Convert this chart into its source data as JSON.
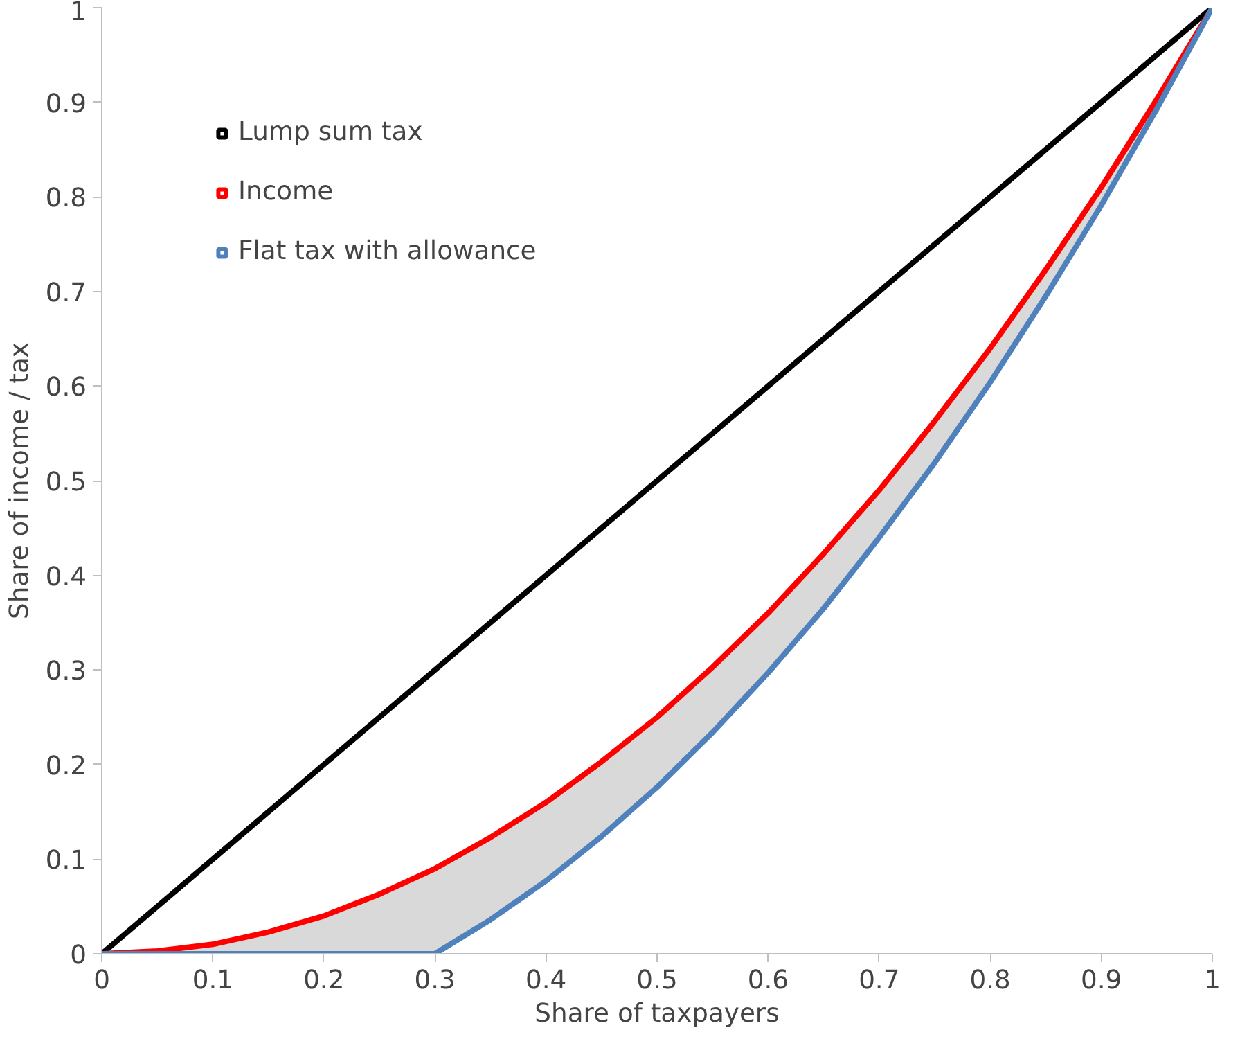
{
  "chart_data": {
    "type": "line",
    "xlabel": "Share of taxpayers",
    "ylabel": "Share of income / tax",
    "x": [
      0,
      0.05,
      0.1,
      0.15,
      0.2,
      0.25,
      0.3,
      0.35,
      0.4,
      0.45,
      0.5,
      0.55,
      0.6,
      0.65,
      0.7,
      0.75,
      0.8,
      0.85,
      0.9,
      0.95,
      1
    ],
    "series": [
      {
        "name": "Lump sum tax",
        "color": "#000000",
        "values": [
          0,
          0.05,
          0.1,
          0.15,
          0.2,
          0.25,
          0.3,
          0.35,
          0.4,
          0.45,
          0.5,
          0.55,
          0.6,
          0.65,
          0.7,
          0.75,
          0.8,
          0.85,
          0.9,
          0.95,
          1
        ]
      },
      {
        "name": "Income",
        "color": "#ff0000",
        "values": [
          0,
          0.003,
          0.01,
          0.023,
          0.04,
          0.063,
          0.09,
          0.123,
          0.16,
          0.203,
          0.25,
          0.303,
          0.36,
          0.423,
          0.49,
          0.563,
          0.64,
          0.723,
          0.81,
          0.903,
          1
        ]
      },
      {
        "name": "Flat tax with allowance",
        "color": "#4f81bd",
        "values": [
          0,
          0,
          0,
          0,
          0,
          0,
          0,
          0.036,
          0.077,
          0.124,
          0.176,
          0.234,
          0.297,
          0.365,
          0.44,
          0.519,
          0.604,
          0.695,
          0.791,
          0.893,
          1
        ],
        "lower": [
          0,
          0,
          0,
          0,
          0,
          0,
          0,
          0.036,
          0.077,
          0.124,
          0.176,
          0.234,
          0.297,
          0.365,
          0.44,
          0.519,
          0.604,
          0.695,
          0.791,
          0.893,
          1
        ],
        "upper": [
          0,
          0.003,
          0.01,
          0.023,
          0.04,
          0.063,
          0.09,
          0.123,
          0.16,
          0.203,
          0.25,
          0.303,
          0.36,
          0.423,
          0.49,
          0.563,
          0.64,
          0.723,
          0.81,
          0.903,
          1
        ]
      }
    ],
    "xlim": [
      0,
      1
    ],
    "ylim": [
      0,
      1
    ],
    "xticks": [
      0,
      0.1,
      0.2,
      0.3,
      0.4,
      0.5,
      0.6,
      0.7,
      0.8,
      0.9,
      1
    ],
    "yticks": [
      0,
      0.1,
      0.2,
      0.3,
      0.4,
      0.5,
      0.6,
      0.7,
      0.8,
      0.9,
      1
    ],
    "grid": false,
    "legend": "top left",
    "marker": "none",
    "line_style": "solid"
  }
}
